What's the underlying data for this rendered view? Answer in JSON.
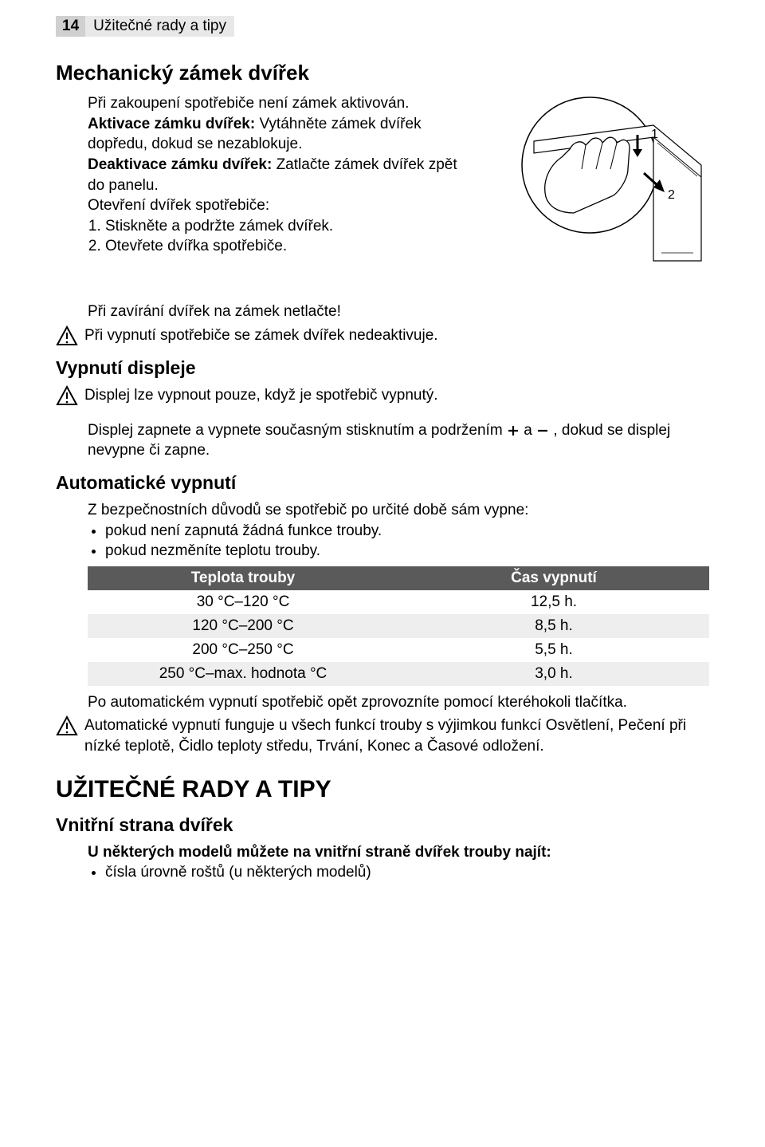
{
  "page_number": "14",
  "header_title": "Užitečné rady a tipy",
  "typography": {
    "body_font": "Arial, Helvetica, sans-serif",
    "body_size_pt": 14,
    "h1_size_pt": 20,
    "h2_size_pt": 17,
    "h0_size_pt": 23
  },
  "colors": {
    "text": "#000000",
    "bg": "#ffffff",
    "header_dark": "#d0d0d0",
    "header_light": "#e8e8e8",
    "table_header_bg": "#5a5a5a",
    "table_header_fg": "#ffffff",
    "table_row_alt_bg": "#eeeeee",
    "illus_stroke": "#000000"
  },
  "sec_lock": {
    "title": "Mechanický zámek dvířek",
    "intro": "Při zakoupení spotřebiče není zámek aktivován.",
    "activate_label": "Aktivace zámku dvířek:",
    "activate_text": " Vytáhněte zámek dvířek dopředu, dokud se nezablokuje.",
    "deactivate_label": "Deaktivace zámku dvířek:",
    "deactivate_text": " Zatlačte zámek dvířek zpět do panelu.",
    "open_label": "Otevření dvířek spotřebiče:",
    "steps": [
      "Stiskněte a podržte zámek dvířek.",
      "Otevřete dvířka spotřebiče."
    ],
    "illus_labels": {
      "one": "1",
      "two": "2"
    }
  },
  "sec_close": {
    "close_note": "Při zavírání dvířek na zámek netlačte!",
    "off_note": "Při vypnutí spotřebiče se zámek dvířek nedeaktivuje."
  },
  "sec_display": {
    "title": "Vypnutí displeje",
    "note1": "Displej lze vypnout pouze, když je spotřebič vypnutý.",
    "note2_a": "Displej zapnete a vypnete současným stisknutím a podržením ",
    "note2_b": " a ",
    "note2_c": " , dokud se displej nevypne či zapne."
  },
  "sec_auto": {
    "title": "Automatické vypnutí",
    "intro": "Z bezpečnostních důvodů se spotřebič po určité době sám vypne:",
    "bullets": [
      "pokud není zapnutá žádná funkce trouby.",
      "pokud nezměníte teplotu trouby."
    ],
    "table": {
      "headers": [
        "Teplota trouby",
        "Čas vypnutí"
      ],
      "col_widths": [
        "50%",
        "50%"
      ],
      "rows": [
        [
          "30 °C–120 °C",
          "12,5 h."
        ],
        [
          "120 °C–200 °C",
          "8,5 h."
        ],
        [
          "200 °C–250 °C",
          "5,5 h."
        ],
        [
          "250 °C–max. hodnota °C",
          "3,0 h."
        ]
      ],
      "row_alt_bg": "#eeeeee"
    },
    "after_table": "Po automatickém vypnutí spotřebič opět zprovozníte pomocí kteréhokoli tlačítka.",
    "caution": "Automatické vypnutí funguje u všech funkcí trouby s výjimkou funkcí Osvětlení, Pečení při nízké teplotě, Čidlo teploty středu, Trvání, Konec a Časové odložení."
  },
  "sec_tips": {
    "title": "UŽITEČNÉ RADY A TIPY",
    "sub": "Vnitřní strana dvířek",
    "intro": "U některých modelů můžete na vnitřní straně dvířek trouby najít:",
    "bullets": [
      "čísla úrovně roštů (u některých modelů)"
    ]
  }
}
